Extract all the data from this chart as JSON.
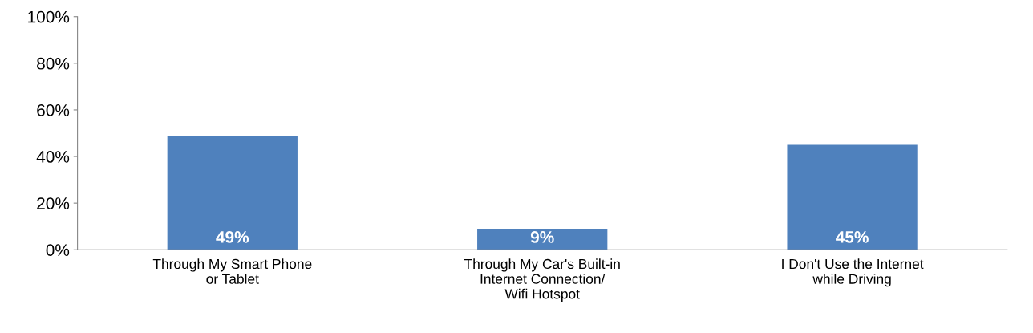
{
  "chart_data": {
    "type": "bar",
    "categories": [
      "Through My Smart Phone\nor Tablet",
      "Through My Car's Built-in\nInternet Connection/\nWifi Hotspot",
      "I Don't Use the Internet\nwhile Driving"
    ],
    "values": [
      49,
      9,
      45
    ],
    "value_labels": [
      "49%",
      "9%",
      "45%"
    ],
    "color": "#4f81bd",
    "ylim": [
      0,
      100
    ],
    "yticks": [
      {
        "value": 0,
        "label": "0%"
      },
      {
        "value": 20,
        "label": "20%"
      },
      {
        "value": 40,
        "label": "40%"
      },
      {
        "value": 60,
        "label": "60%"
      },
      {
        "value": 80,
        "label": "80%"
      },
      {
        "value": 100,
        "label": "100%"
      }
    ],
    "grid": false,
    "legend": false
  }
}
